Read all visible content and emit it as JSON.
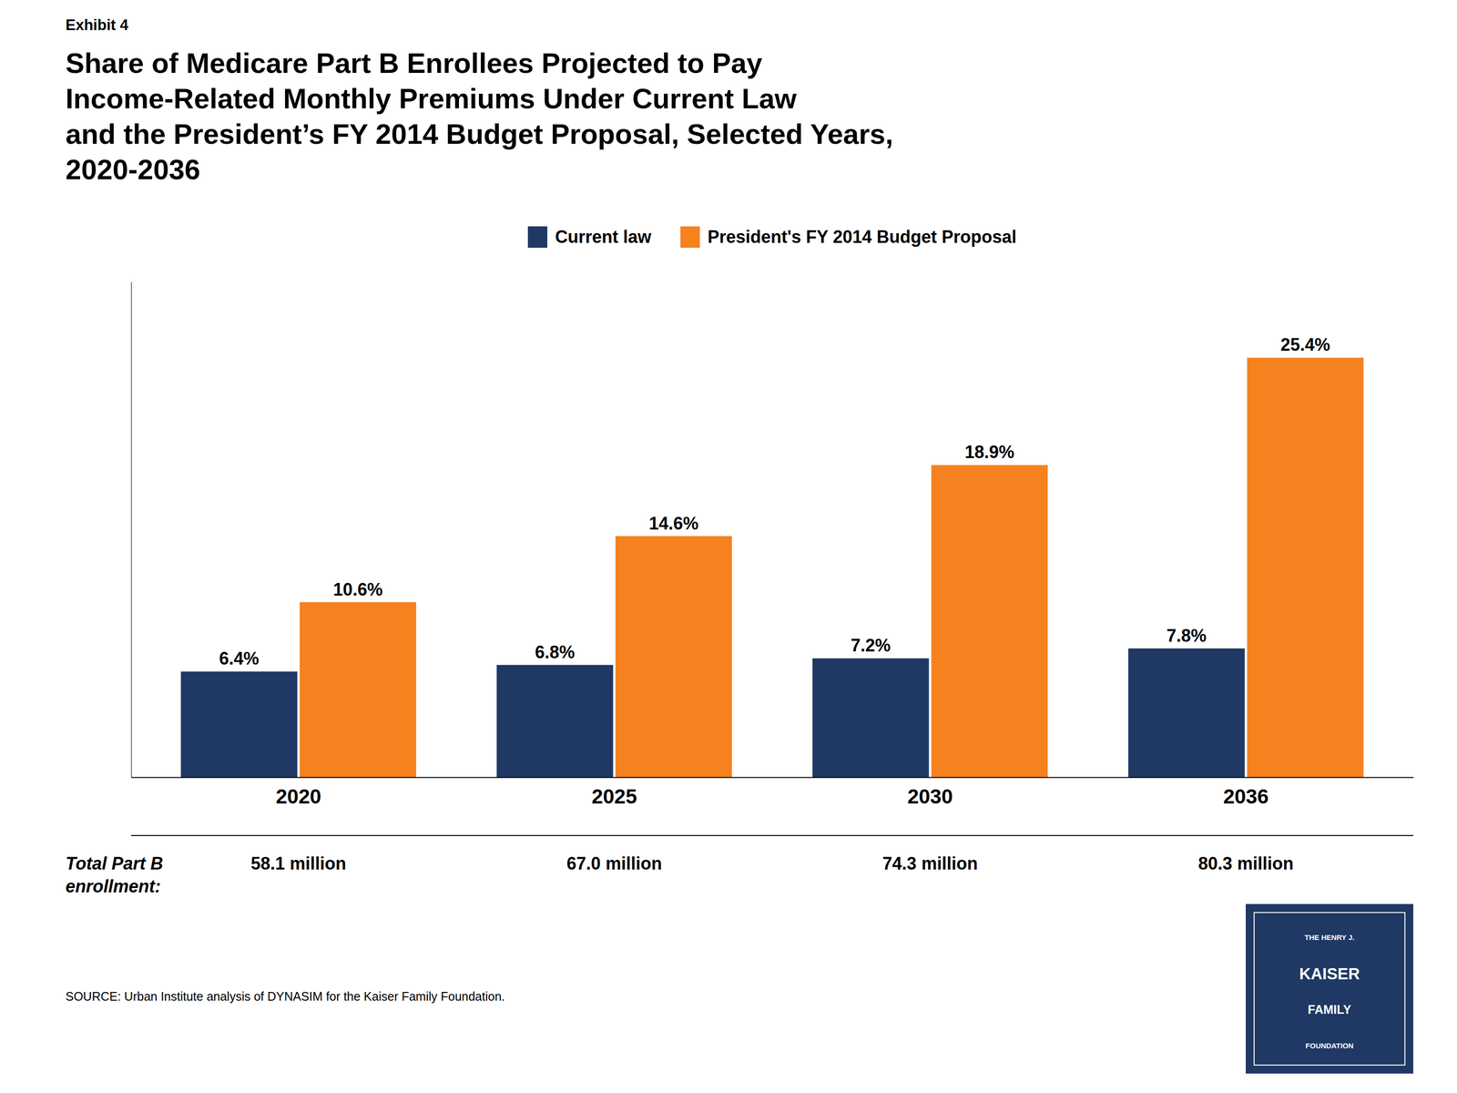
{
  "chart_data": {
    "type": "bar",
    "exhibit_label": "Exhibit 4",
    "title": [
      "Share of Medicare Part B Enrollees Projected to Pay",
      "Income-Related Monthly Premiums Under Current Law",
      "and the President’s FY 2014 Budget Proposal, Selected Years,",
      "2020-2036"
    ],
    "categories": [
      "2020",
      "2025",
      "2030",
      "2036"
    ],
    "series": [
      {
        "name": "Current law",
        "color": "#1f3864",
        "values": [
          6.4,
          6.8,
          7.2,
          7.8
        ],
        "value_labels": [
          "6.4%",
          "6.8%",
          "7.2%",
          "7.8%"
        ]
      },
      {
        "name": "President's FY 2014 Budget Proposal",
        "color": "#f5821f",
        "values": [
          10.6,
          14.6,
          18.9,
          25.4
        ],
        "value_labels": [
          "10.6%",
          "14.6%",
          "18.9%",
          "25.4%"
        ]
      }
    ],
    "ylim": [
      0,
      30
    ],
    "tick_labels": "x",
    "grid": false,
    "legend": "top",
    "data_labels": true,
    "enrollment_label": [
      "Total Part B",
      "enrollment:"
    ],
    "enrollment_values": [
      "58.1 million",
      "67.0 million",
      "74.3 million",
      "80.3 million"
    ],
    "source": "SOURCE: Urban Institute analysis of DYNASIM for the Kaiser Family Foundation.",
    "logo_text": [
      "THE HENRY J.",
      "KAISER",
      "FAMILY",
      "FOUNDATION"
    ]
  }
}
